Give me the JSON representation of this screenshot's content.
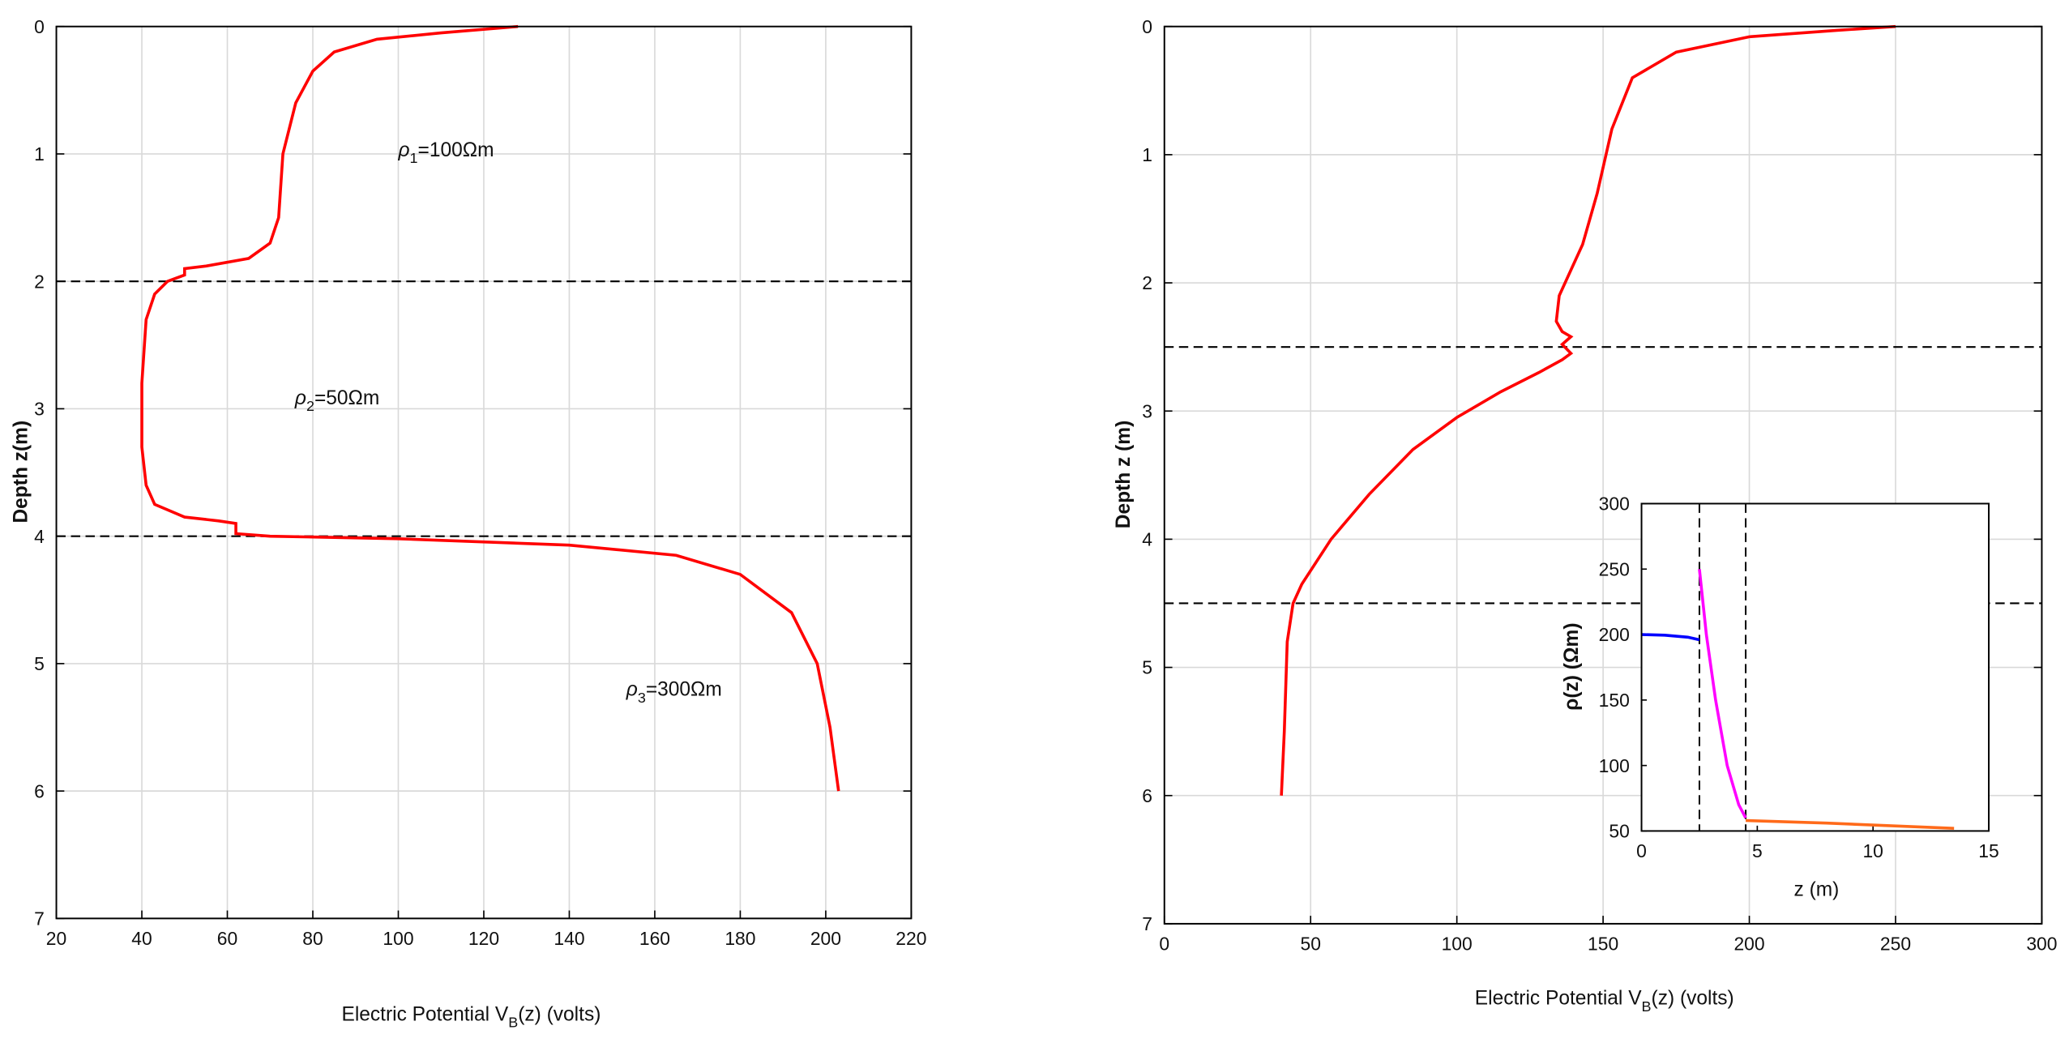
{
  "chart_data": [
    {
      "type": "line",
      "grid": true,
      "y_reversed": true,
      "xlabel": {
        "text": "Electric Potential V",
        "sub": "B",
        "after": "(z) (volts)"
      },
      "ylabel": "Depth  z(m)",
      "xlim": [
        20,
        220
      ],
      "ylim": [
        0,
        7
      ],
      "xticks": [
        20,
        40,
        60,
        80,
        100,
        120,
        140,
        160,
        180,
        200,
        220
      ],
      "yticks": [
        0,
        1,
        2,
        3,
        4,
        5,
        6,
        7
      ],
      "hlines": [
        2,
        4
      ],
      "annotations": [
        {
          "symbol": "ρ",
          "sub": "1",
          "text": "=100Ωm"
        },
        {
          "symbol": "ρ",
          "sub": "2",
          "text": "=50Ωm"
        },
        {
          "symbol": "ρ",
          "sub": "3",
          "text": "=300Ωm"
        }
      ],
      "series": [
        {
          "color": "#ff0000",
          "x": [
            128,
            110,
            95,
            85,
            80,
            76,
            73,
            72,
            70,
            65,
            55,
            50,
            50,
            46,
            43,
            41,
            40,
            40,
            41,
            43,
            50,
            58,
            62,
            62,
            70,
            100,
            140,
            165,
            180,
            192,
            198,
            201,
            203
          ],
          "y": [
            0,
            0.05,
            0.1,
            0.2,
            0.35,
            0.6,
            1.0,
            1.5,
            1.7,
            1.82,
            1.88,
            1.9,
            1.95,
            2.0,
            2.1,
            2.3,
            2.8,
            3.3,
            3.6,
            3.75,
            3.85,
            3.88,
            3.9,
            3.98,
            4.0,
            4.02,
            4.07,
            4.15,
            4.3,
            4.6,
            5.0,
            5.5,
            6.0
          ]
        }
      ]
    },
    {
      "type": "line",
      "grid": true,
      "y_reversed": true,
      "xlabel": {
        "text": "Electric Potential V",
        "sub": "B",
        "after": "(z)  (volts)"
      },
      "ylabel": "Depth z (m)",
      "xlim": [
        0,
        300
      ],
      "ylim": [
        0,
        7
      ],
      "xticks": [
        0,
        50,
        100,
        150,
        200,
        250,
        300
      ],
      "yticks": [
        0,
        1,
        2,
        3,
        4,
        5,
        6,
        7
      ],
      "hlines": [
        2.5,
        4.5
      ],
      "series": [
        {
          "color": "#ff0000",
          "x": [
            250,
            230,
            200,
            175,
            160,
            153,
            148,
            143,
            138,
            135,
            134,
            136,
            139,
            136,
            139,
            136,
            128,
            115,
            100,
            85,
            70,
            57,
            47,
            44,
            42,
            41,
            40
          ],
          "y": [
            0,
            0.03,
            0.08,
            0.2,
            0.4,
            0.8,
            1.3,
            1.7,
            1.95,
            2.1,
            2.3,
            2.38,
            2.42,
            2.48,
            2.55,
            2.6,
            2.7,
            2.85,
            3.05,
            3.3,
            3.65,
            4.0,
            4.35,
            4.5,
            4.8,
            5.5,
            6.0
          ]
        }
      ]
    },
    {
      "type": "line",
      "grid": false,
      "y_reversed": false,
      "xlabel": "z (m)",
      "ylabel": "ρ(z) (Ωm)",
      "xlim": [
        0,
        15
      ],
      "ylim": [
        50,
        300
      ],
      "xticks": [
        0,
        5,
        10,
        15
      ],
      "yticks": [
        50,
        100,
        150,
        200,
        250,
        300
      ],
      "vlines": [
        2.5,
        4.5
      ],
      "series": [
        {
          "color": "#0000ff",
          "x": [
            0,
            1,
            2,
            2.5
          ],
          "y": [
            200,
            199.5,
            198,
            196
          ]
        },
        {
          "color": "#ff00ff",
          "x": [
            2.5,
            2.8,
            3.2,
            3.7,
            4.2,
            4.5
          ],
          "y": [
            250,
            200,
            150,
            100,
            70,
            60
          ]
        },
        {
          "color": "#ff6a1a",
          "x": [
            4.5,
            8,
            13.5
          ],
          "y": [
            58,
            56,
            52
          ]
        }
      ]
    }
  ]
}
